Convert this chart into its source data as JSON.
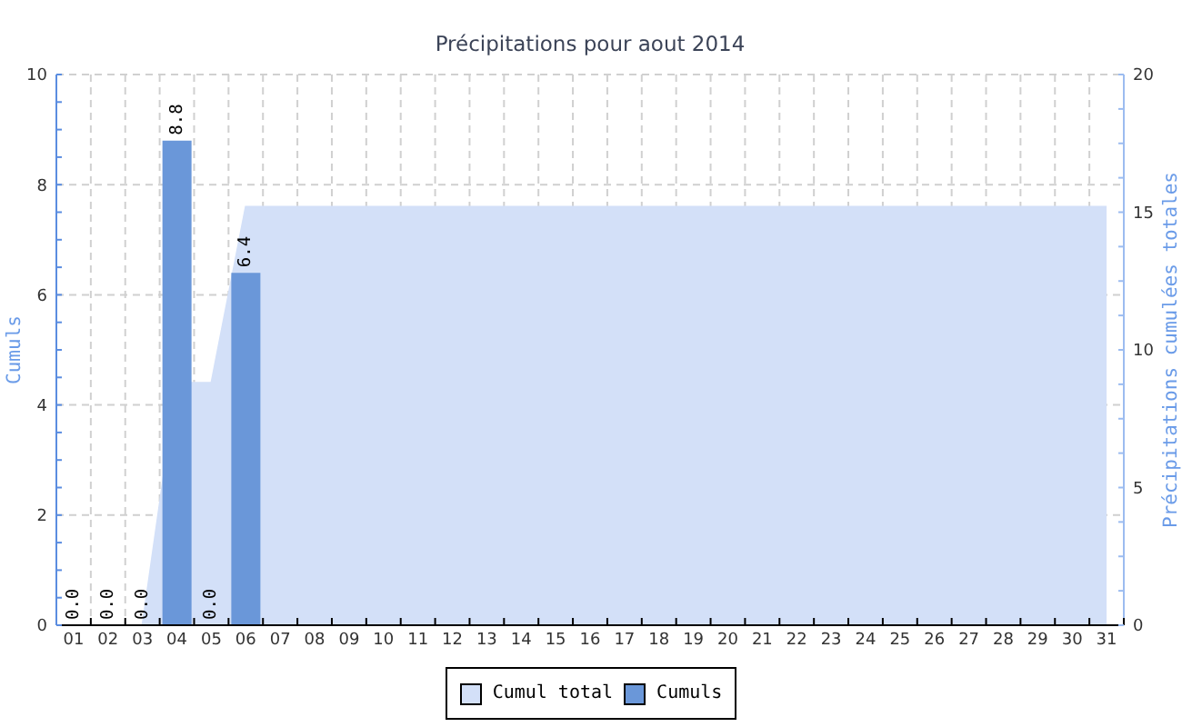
{
  "chart_data": {
    "type": "bar",
    "title": "Précipitations pour aout 2014",
    "ylabel": "Cumuls",
    "y2label": "Précipitations cumulées totales",
    "categories": [
      "01",
      "02",
      "03",
      "04",
      "05",
      "06",
      "07",
      "08",
      "09",
      "10",
      "11",
      "12",
      "13",
      "14",
      "15",
      "16",
      "17",
      "18",
      "19",
      "20",
      "21",
      "22",
      "23",
      "24",
      "25",
      "26",
      "27",
      "28",
      "29",
      "30",
      "31"
    ],
    "series": [
      {
        "name": "Cumul total",
        "type": "area",
        "axis": "y2",
        "color": "#d3e0f8",
        "values": [
          0,
          0,
          0,
          8.8,
          8.8,
          15.2,
          15.2,
          15.2,
          15.2,
          15.2,
          15.2,
          15.2,
          15.2,
          15.2,
          15.2,
          15.2,
          15.2,
          15.2,
          15.2,
          15.2,
          15.2,
          15.2,
          15.2,
          15.2,
          15.2,
          15.2,
          15.2,
          15.2,
          15.2,
          15.2,
          15.2
        ]
      },
      {
        "name": "Cumuls",
        "color": "#6a97d9",
        "values": [
          0,
          0,
          0,
          8.8,
          0,
          6.4,
          null,
          null,
          null,
          null,
          null,
          null,
          null,
          null,
          null,
          null,
          null,
          null,
          null,
          null,
          null,
          null,
          null,
          null,
          null,
          null,
          null,
          null,
          null,
          null,
          null
        ],
        "value_labels": [
          "0.0",
          "0.0",
          "0.0",
          "8.8",
          "0.0",
          "6.4",
          null,
          null,
          null,
          null,
          null,
          null,
          null,
          null,
          null,
          null,
          null,
          null,
          null,
          null,
          null,
          null,
          null,
          null,
          null,
          null,
          null,
          null,
          null,
          null,
          null
        ]
      }
    ],
    "ylim": [
      0,
      10
    ],
    "yticks": [
      0,
      {
        "value": 0.5,
        "label": null
      },
      {
        "value": 1,
        "label": null
      },
      {
        "value": 1.5,
        "label": null
      },
      2,
      {
        "value": 2.5,
        "label": null
      },
      {
        "value": 3,
        "label": null
      },
      {
        "value": 3.5,
        "label": null
      },
      4,
      {
        "value": 4.5,
        "label": null
      },
      {
        "value": 5,
        "label": null
      },
      {
        "value": 5.5,
        "label": null
      },
      6,
      {
        "value": 6.5,
        "label": null
      },
      {
        "value": 7,
        "label": null
      },
      {
        "value": 7.5,
        "label": null
      },
      8,
      {
        "value": 8.5,
        "label": null
      },
      {
        "value": 9,
        "label": null
      },
      {
        "value": 9.5,
        "label": null
      },
      10
    ],
    "y2lim": [
      0,
      20
    ],
    "y2ticks": [
      0,
      {
        "value": 1.25,
        "label": null
      },
      {
        "value": 2.5,
        "label": null
      },
      {
        "value": 3.75,
        "label": null
      },
      5,
      {
        "value": 6.25,
        "label": null
      },
      {
        "value": 7.5,
        "label": null
      },
      {
        "value": 8.75,
        "label": null
      },
      10,
      {
        "value": 11.25,
        "label": null
      },
      {
        "value": 12.5,
        "label": null
      },
      {
        "value": 13.75,
        "label": null
      },
      15,
      {
        "value": 16.25,
        "label": null
      },
      {
        "value": 17.5,
        "label": null
      },
      {
        "value": 18.75,
        "label": null
      },
      20
    ],
    "grid": true,
    "legend": "bottom"
  }
}
